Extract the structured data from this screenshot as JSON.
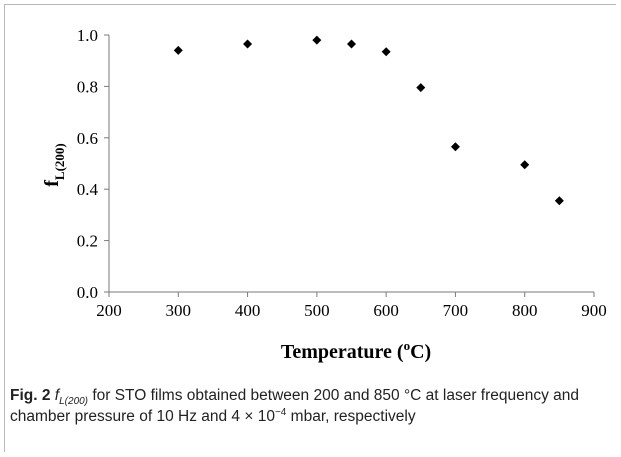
{
  "chart_data": {
    "type": "scatter",
    "xlabel_main": "Temperature",
    "xlabel_unit_open": " (",
    "xlabel_unit_sup": "o",
    "xlabel_unit_close": "C)",
    "ylabel_main": "f",
    "ylabel_sub": "L(200)",
    "xlim": [
      200,
      900
    ],
    "ylim": [
      0.0,
      1.0
    ],
    "x_ticks": [
      "200",
      "300",
      "400",
      "500",
      "600",
      "700",
      "800",
      "900"
    ],
    "y_ticks": [
      "0.0",
      "0.2",
      "0.4",
      "0.6",
      "0.8",
      "1.0"
    ],
    "grid": false,
    "marker": "diamond",
    "marker_color": "#000000",
    "x": [
      300,
      400,
      500,
      550,
      600,
      650,
      700,
      800,
      850
    ],
    "y": [
      0.94,
      0.965,
      0.98,
      0.965,
      0.935,
      0.795,
      0.565,
      0.495,
      0.355
    ]
  },
  "caption": {
    "fig_label": "Fig. 2",
    "f_symbol": "f",
    "f_sub": "L(200)",
    "text_a": " for STO films obtained between 200 and 850 °C at laser frequency and chamber pressure of 10 Hz and 4 × 10",
    "exp": "−4",
    "text_b": " mbar, respectively"
  }
}
